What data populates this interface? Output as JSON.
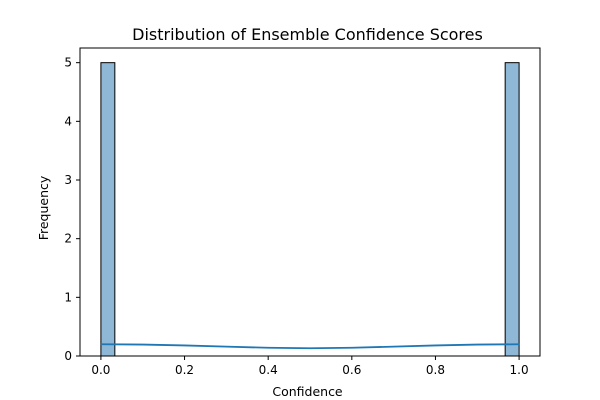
{
  "chart_data": {
    "type": "bar",
    "title": "Distribution of Ensemble Confidence Scores",
    "xlabel": "Confidence",
    "ylabel": "Frequency",
    "xlim": [
      -0.05,
      1.05
    ],
    "ylim": [
      0,
      5.25
    ],
    "xticks": [
      0.0,
      0.2,
      0.4,
      0.6,
      0.8,
      1.0
    ],
    "xtick_labels": [
      "0.0",
      "0.2",
      "0.4",
      "0.6",
      "0.8",
      "1.0"
    ],
    "yticks": [
      0,
      1,
      2,
      3,
      4,
      5
    ],
    "ytick_labels": [
      "0",
      "1",
      "2",
      "3",
      "4",
      "5"
    ],
    "bins": [
      {
        "x0": 0.0,
        "x1": 0.0333,
        "count": 5
      },
      {
        "x0": 0.9667,
        "x1": 1.0,
        "count": 5
      }
    ],
    "kde": {
      "x": [
        0.0,
        0.1,
        0.2,
        0.3,
        0.4,
        0.5,
        0.6,
        0.7,
        0.8,
        0.9,
        1.0
      ],
      "y": [
        0.2,
        0.195,
        0.18,
        0.16,
        0.14,
        0.132,
        0.14,
        0.16,
        0.18,
        0.195,
        0.2
      ]
    },
    "colors": {
      "bar_fill": "#8fb8d6",
      "bar_edge": "#000000",
      "kde_line": "#1f77b4"
    },
    "grid": false,
    "legend": "none"
  }
}
